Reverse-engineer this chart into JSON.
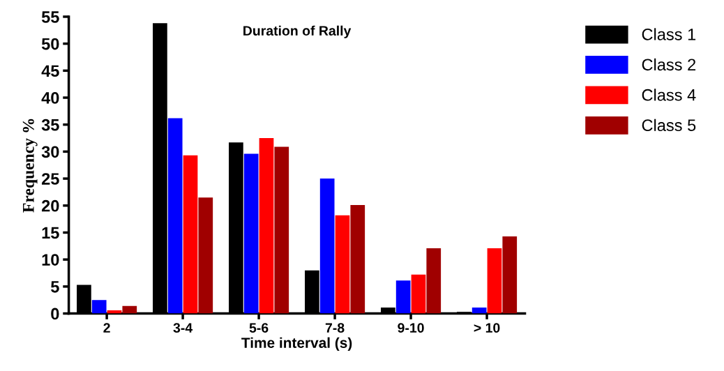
{
  "chart_data": {
    "type": "bar",
    "title": "Duration of Rally",
    "xlabel": "Time interval (s)",
    "ylabel": "Frequency %",
    "categories": [
      "2",
      "3-4",
      "5-6",
      "7-8",
      "9-10",
      "> 10"
    ],
    "series": [
      {
        "name": "Class 1",
        "color": "#000000",
        "values": [
          5.3,
          53.8,
          31.7,
          8.0,
          1.1,
          0.3
        ]
      },
      {
        "name": "Class 2",
        "color": "#0000ff",
        "values": [
          2.5,
          36.2,
          29.6,
          25.0,
          6.1,
          1.1
        ]
      },
      {
        "name": "Class 4",
        "color": "#ff0000",
        "values": [
          0.6,
          29.3,
          32.5,
          18.2,
          7.2,
          12.1
        ]
      },
      {
        "name": "Class 5",
        "color": "#a00000",
        "values": [
          1.4,
          21.5,
          30.9,
          20.1,
          12.1,
          14.3
        ]
      }
    ],
    "ylim": [
      0,
      55
    ],
    "yticks": [
      0,
      5,
      10,
      15,
      20,
      25,
      30,
      35,
      40,
      45,
      50,
      55
    ],
    "grid": false,
    "legend": "top right"
  }
}
